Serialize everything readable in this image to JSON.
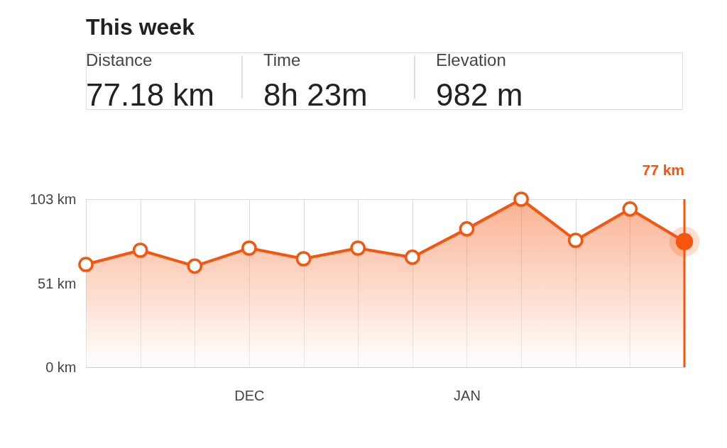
{
  "chart_data": {
    "type": "area",
    "title": "This week",
    "annotations": [
      "Distance",
      "77.18 km",
      "Time",
      "8h 23m",
      "Elevation",
      "982 m",
      "77 km"
    ],
    "categories": [
      null,
      null,
      null,
      "DEC",
      null,
      null,
      null,
      "JAN",
      null,
      null,
      null,
      null
    ],
    "series": [
      {
        "color": "#f4550f",
        "values": [
          63,
          71.7,
          62,
          73,
          66.5,
          73,
          67.4,
          84.8,
          103,
          77.8,
          97,
          77
        ]
      }
    ],
    "ylim": [
      0,
      103
    ],
    "yticks": [
      {
        "value": 0,
        "label": "0 km"
      },
      {
        "value": 51,
        "label": "51 km"
      },
      {
        "value": 103,
        "label": "103 km"
      }
    ],
    "grid": "x",
    "marker": "circle"
  }
}
